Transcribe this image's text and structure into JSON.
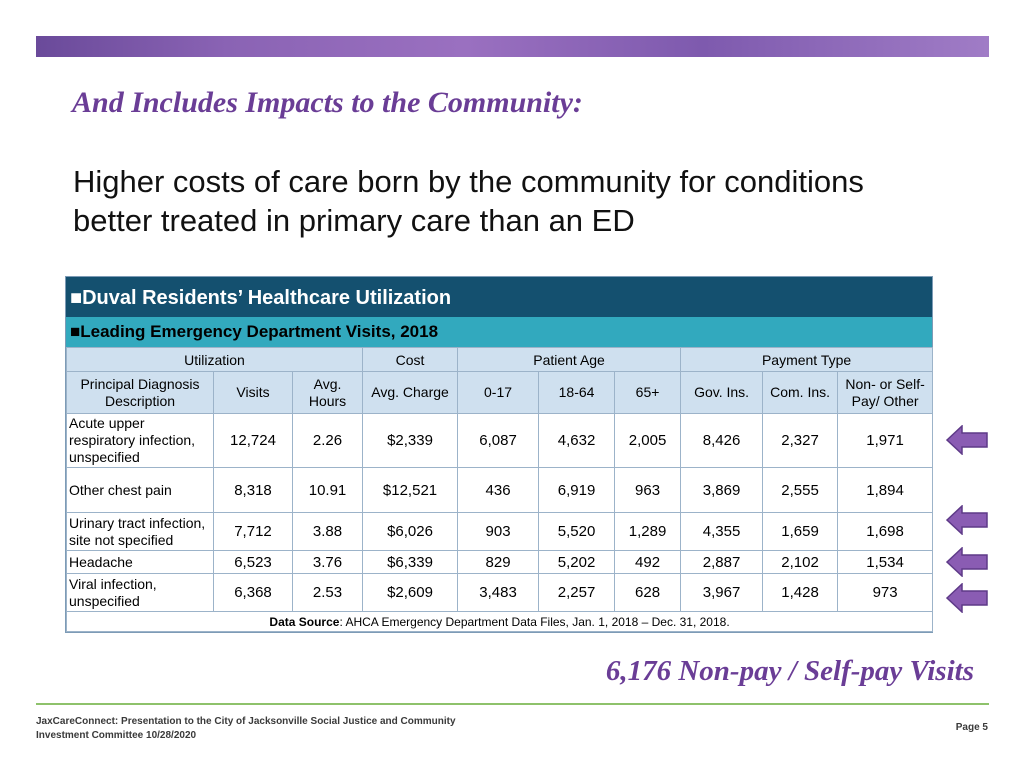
{
  "slide": {
    "title": "And Includes Impacts to the Community:",
    "subtitle": "Higher costs of care born by the community for conditions better treated in primary care than an ED",
    "callout": "6,176 Non-pay / Self-pay Visits",
    "footer_text": "JaxCareConnect: Presentation to the City of Jacksonville Social Justice and Community Investment Committee 10/28/2020",
    "page_number": "Page 5",
    "accent_color": "#6a3d96"
  },
  "table": {
    "heading": "■Duval Residents’ Healthcare Utilization",
    "subheading": "■Leading Emergency Department Visits, 2018",
    "groups": {
      "utilization": "Utilization",
      "cost": "Cost",
      "patient_age": "Patient Age",
      "payment_type": "Payment Type"
    },
    "columns": [
      "Principal Diagnosis Description",
      "Visits",
      "Avg. Hours",
      "Avg. Charge",
      "0-17",
      "18-64",
      "65+",
      "Gov. Ins.",
      "Com. Ins.",
      "Non- or Self-Pay/ Other"
    ],
    "rows": [
      {
        "diagnosis": "Acute upper respiratory infection, unspecified",
        "visits": "12,724",
        "avg_hours": "2.26",
        "avg_charge": "$2,339",
        "age_0_17": "6,087",
        "age_18_64": "4,632",
        "age_65": "2,005",
        "gov": "8,426",
        "com": "2,327",
        "self": "1,971"
      },
      {
        "diagnosis": "Other chest pain",
        "visits": "8,318",
        "avg_hours": "10.91",
        "avg_charge": "$12,521",
        "age_0_17": "436",
        "age_18_64": "6,919",
        "age_65": "963",
        "gov": "3,869",
        "com": "2,555",
        "self": "1,894"
      },
      {
        "diagnosis": "Urinary tract infection, site not specified",
        "visits": "7,712",
        "avg_hours": "3.88",
        "avg_charge": "$6,026",
        "age_0_17": "903",
        "age_18_64": "5,520",
        "age_65": "1,289",
        "gov": "4,355",
        "com": "1,659",
        "self": "1,698"
      },
      {
        "diagnosis": "Headache",
        "visits": "6,523",
        "avg_hours": "3.76",
        "avg_charge": "$6,339",
        "age_0_17": "829",
        "age_18_64": "5,202",
        "age_65": "492",
        "gov": "2,887",
        "com": "2,102",
        "self": "1,534"
      },
      {
        "diagnosis": "Viral infection, unspecified",
        "visits": "6,368",
        "avg_hours": "2.53",
        "avg_charge": "$2,609",
        "age_0_17": "3,483",
        "age_18_64": "2,257",
        "age_65": "628",
        "gov": "3,967",
        "com": "1,428",
        "self": "973"
      }
    ],
    "source_label": "Data Source",
    "source_text": ": AHCA Emergency Department Data Files, Jan. 1, 2018 – Dec. 31, 2018."
  },
  "icons": {
    "row_arrow": "left-arrow-icon",
    "arrow_color": "#8a5cb3"
  }
}
